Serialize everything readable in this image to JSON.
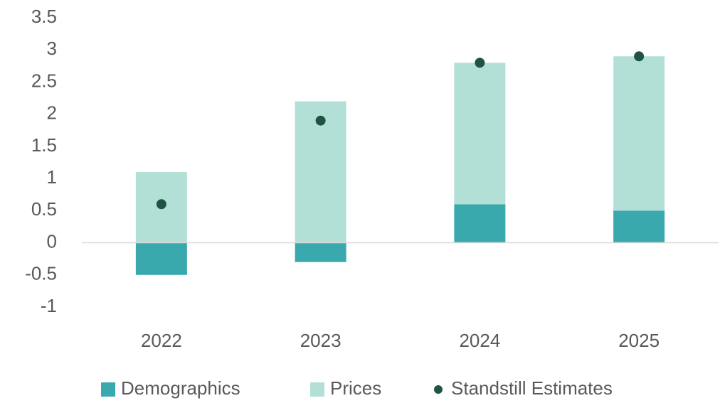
{
  "chart_data": {
    "type": "bar",
    "stacked": true,
    "categories": [
      "2022",
      "2023",
      "2024",
      "2025"
    ],
    "series": [
      {
        "name": "Demographics",
        "type": "bar",
        "color": "#3aa9ae",
        "values": [
          -0.5,
          -0.3,
          0.6,
          0.5
        ]
      },
      {
        "name": "Prices",
        "type": "bar",
        "color": "#b3e0d6",
        "values": [
          1.1,
          2.2,
          2.2,
          2.4
        ]
      },
      {
        "name": "Standstill Estimates",
        "type": "scatter",
        "color": "#1f5443",
        "values": [
          0.6,
          1.9,
          2.8,
          2.9
        ]
      }
    ],
    "ylim": [
      -1,
      3.5
    ],
    "yticks": [
      -1,
      -0.5,
      0,
      0.5,
      1,
      1.5,
      2,
      2.5,
      3,
      3.5
    ],
    "grid": false,
    "legend": "bottom"
  }
}
